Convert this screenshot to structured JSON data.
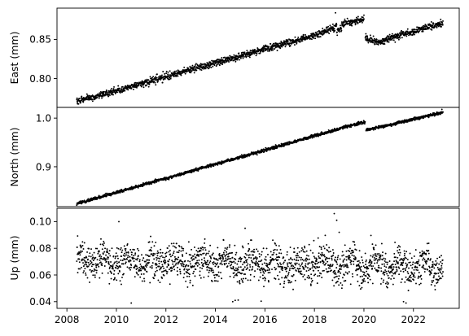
{
  "chart_data": {
    "type": "scatter",
    "marker_color": "#000000",
    "x_range": [
      2007.6,
      2023.85
    ],
    "x_ticks": [
      "2008",
      "2010",
      "2012",
      "2014",
      "2016",
      "2018",
      "2020",
      "2022"
    ],
    "x_tick_values": [
      2008,
      2010,
      2012,
      2014,
      2016,
      2018,
      2020,
      2022
    ],
    "grid": false,
    "shared_x": true,
    "panels": [
      {
        "id": "east",
        "ylabel": "East (mm)",
        "ylim": [
          0.763,
          0.89
        ],
        "y_ticks": [
          "0.80",
          "0.85"
        ],
        "y_tick_values": [
          0.8,
          0.85
        ],
        "trend_segments": [
          {
            "x0": 2008.4,
            "y0": 0.7705,
            "x1": 2018.2,
            "y1": 0.857
          },
          {
            "x0": 2018.2,
            "y0": 0.857,
            "x1": 2018.9,
            "y1": 0.8665
          },
          {
            "x0": 2018.9,
            "y0": 0.862,
            "x1": 2019.1,
            "y1": 0.864
          },
          {
            "x0": 2019.1,
            "y0": 0.869,
            "x1": 2020.0,
            "y1": 0.876
          },
          {
            "x0": 2020.05,
            "y0": 0.851,
            "x1": 2020.6,
            "y1": 0.847
          },
          {
            "x0": 2020.6,
            "y0": 0.847,
            "x1": 2023.2,
            "y1": 0.871
          }
        ],
        "noise": 0.0022,
        "point_step_days": 3,
        "outliers": [
          {
            "x": 2018.85,
            "y": 0.884
          },
          {
            "x": 2020.0,
            "y": 0.881
          },
          {
            "x": 2019.7,
            "y": 0.878
          }
        ]
      },
      {
        "id": "north",
        "ylabel": "North (mm)",
        "ylim": [
          0.818,
          1.022
        ],
        "y_ticks": [
          "0.9",
          "1.0"
        ],
        "y_tick_values": [
          0.9,
          1.0
        ],
        "trend_segments": [
          {
            "x0": 2008.4,
            "y0": 0.824,
            "x1": 2020.05,
            "y1": 0.993
          },
          {
            "x0": 2020.08,
            "y0": 0.975,
            "x1": 2023.2,
            "y1": 1.012
          }
        ],
        "noise": 0.0015,
        "point_step_days": 3,
        "outliers": [
          {
            "x": 2023.15,
            "y": 1.018
          }
        ]
      },
      {
        "id": "up",
        "ylabel": "Up (mm)",
        "ylim": [
          0.035,
          0.11
        ],
        "y_ticks": [
          "0.04",
          "0.06",
          "0.08",
          "0.10"
        ],
        "y_tick_values": [
          0.04,
          0.06,
          0.08,
          0.1
        ],
        "trend_segments": [
          {
            "x0": 2008.4,
            "y0": 0.071,
            "x1": 2023.2,
            "y1": 0.066
          }
        ],
        "seasonal_amplitude": 0.004,
        "noise": 0.0065,
        "point_step_days": 3,
        "outliers": [
          {
            "x": 2018.8,
            "y": 0.106
          },
          {
            "x": 2018.9,
            "y": 0.101
          },
          {
            "x": 2010.1,
            "y": 0.1
          },
          {
            "x": 2010.6,
            "y": 0.039
          },
          {
            "x": 2014.7,
            "y": 0.04
          },
          {
            "x": 2014.8,
            "y": 0.041
          },
          {
            "x": 2021.6,
            "y": 0.04
          },
          {
            "x": 2021.7,
            "y": 0.039
          },
          {
            "x": 2015.2,
            "y": 0.095
          },
          {
            "x": 2019.0,
            "y": 0.092
          }
        ]
      }
    ]
  }
}
